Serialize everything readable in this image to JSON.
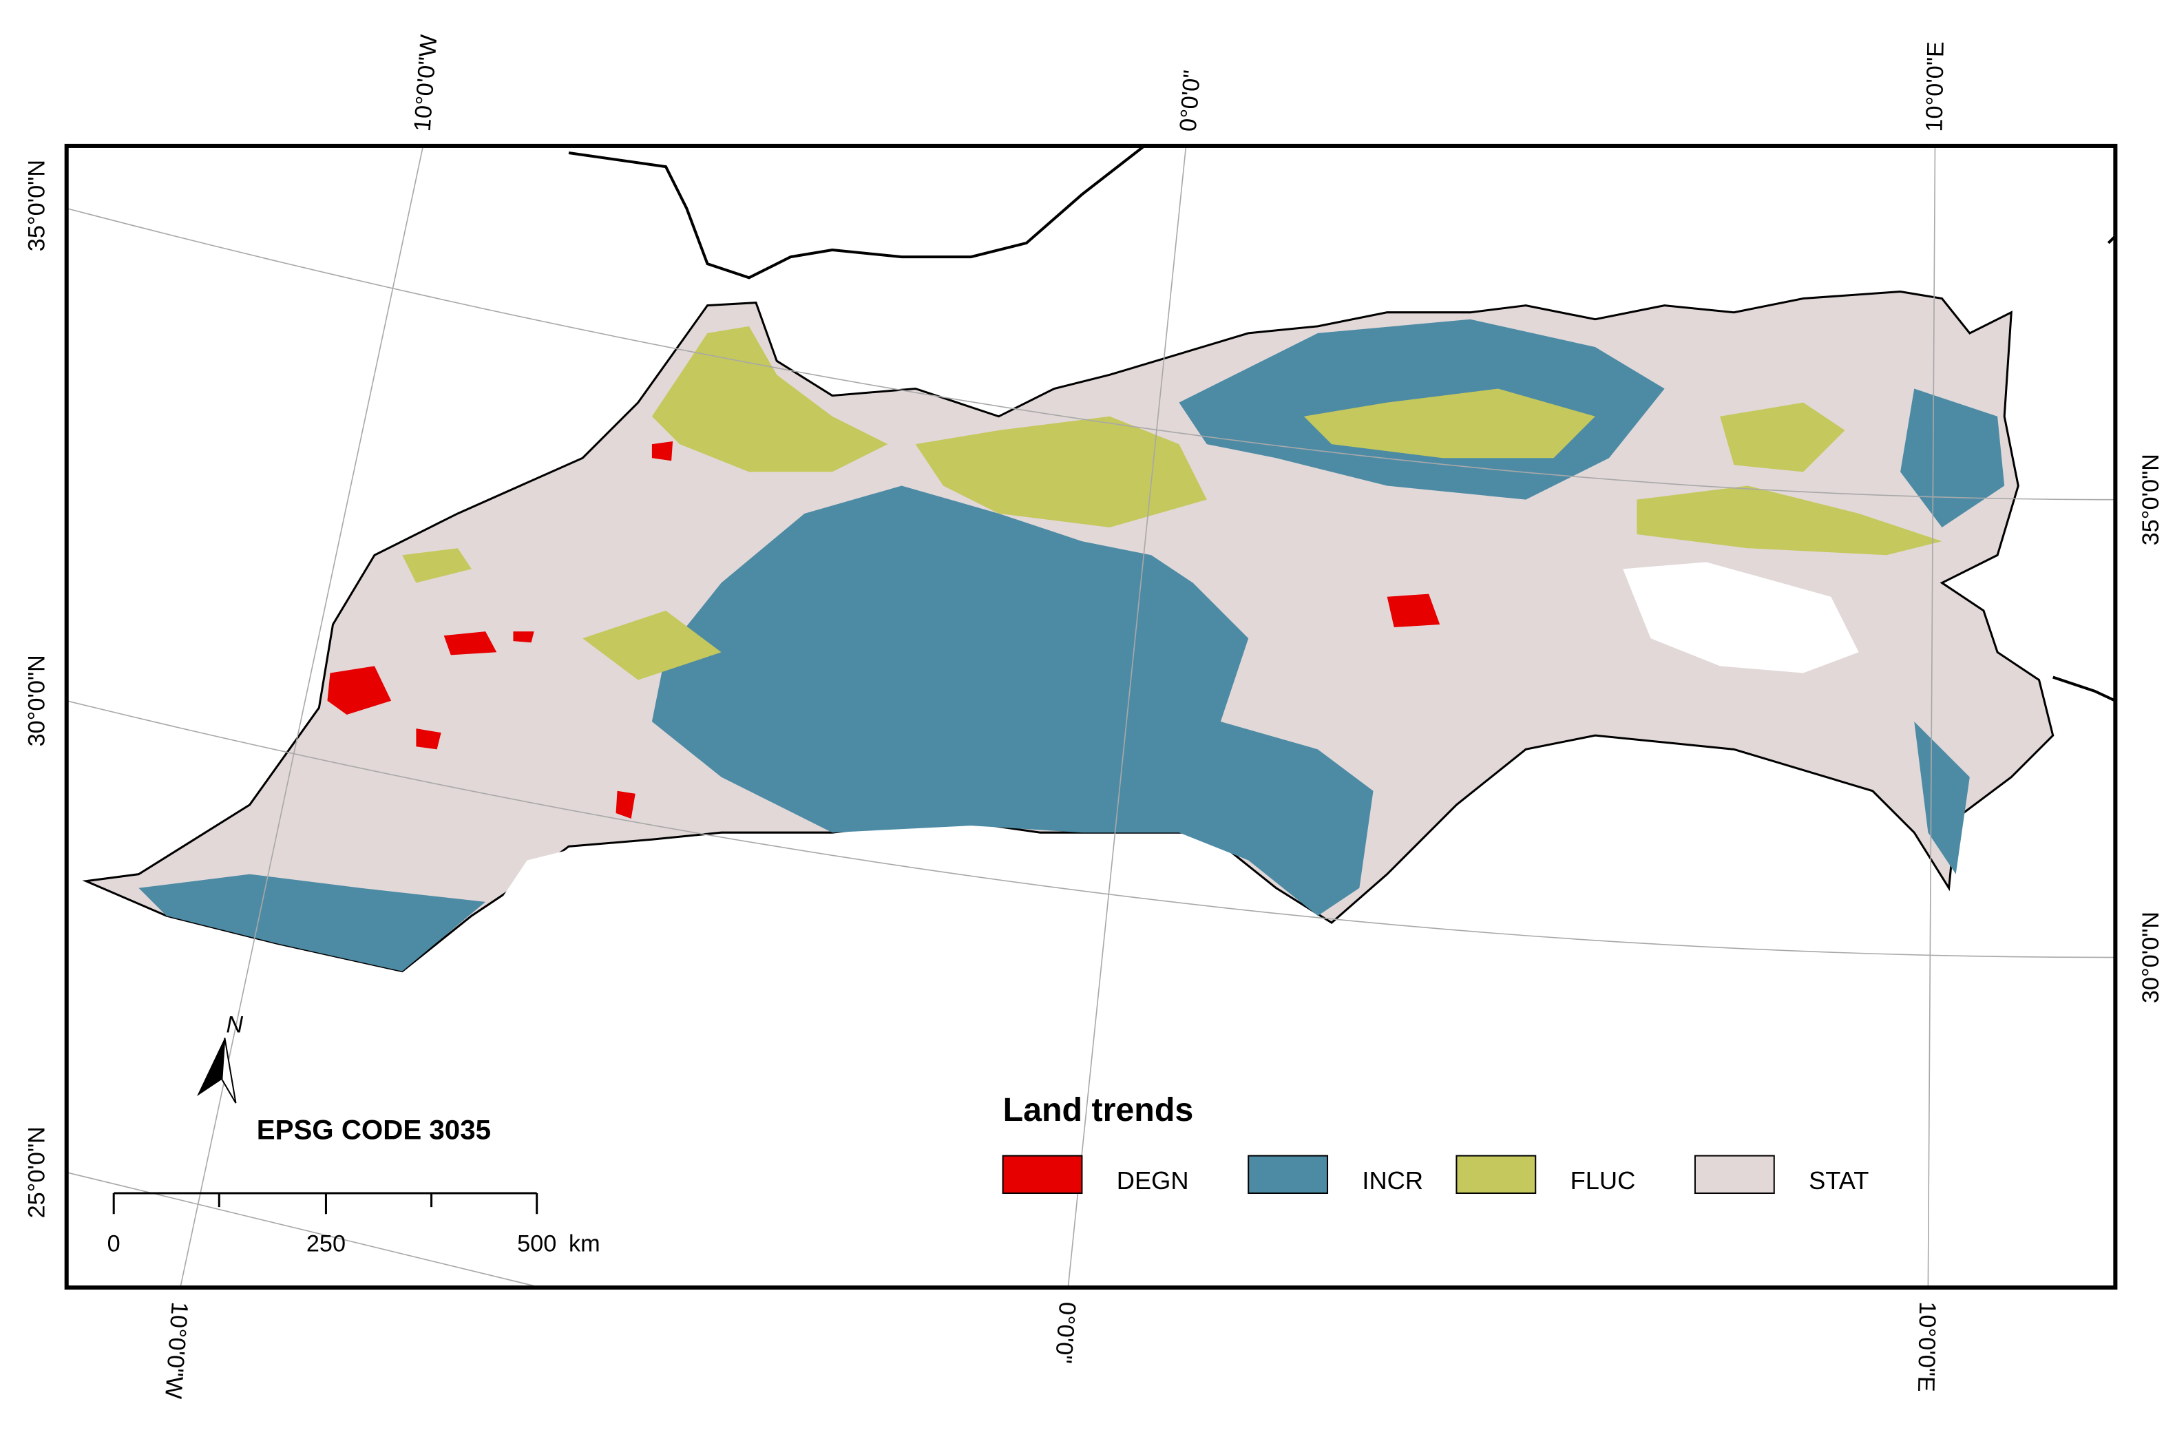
{
  "graticule_labels": {
    "top": [
      "10°0'0\"W",
      "0°0'0\"",
      "10°0'0\"E"
    ],
    "bottom": [
      "10°0'0\"W",
      "0°0'0\"",
      "10°0'0\"E"
    ],
    "left": [
      "35°0'0\"N",
      "30°0'0\"N",
      "25°0'0\"N"
    ],
    "right": [
      "35°0'0\"N",
      "30°0'0\"N"
    ]
  },
  "north_arrow": "N",
  "projection": "EPSG CODE 3035",
  "scale_bar": {
    "labels": [
      "0",
      "250",
      "500"
    ],
    "unit": "km"
  },
  "legend": {
    "title": "Land trends",
    "items": [
      {
        "label": "DEGN",
        "color": "#e60000"
      },
      {
        "label": "INCR",
        "color": "#4d8ba5"
      },
      {
        "label": "FLUC",
        "color": "#c5c85c"
      },
      {
        "label": "STAT",
        "color": "#e2d8d8"
      }
    ]
  }
}
